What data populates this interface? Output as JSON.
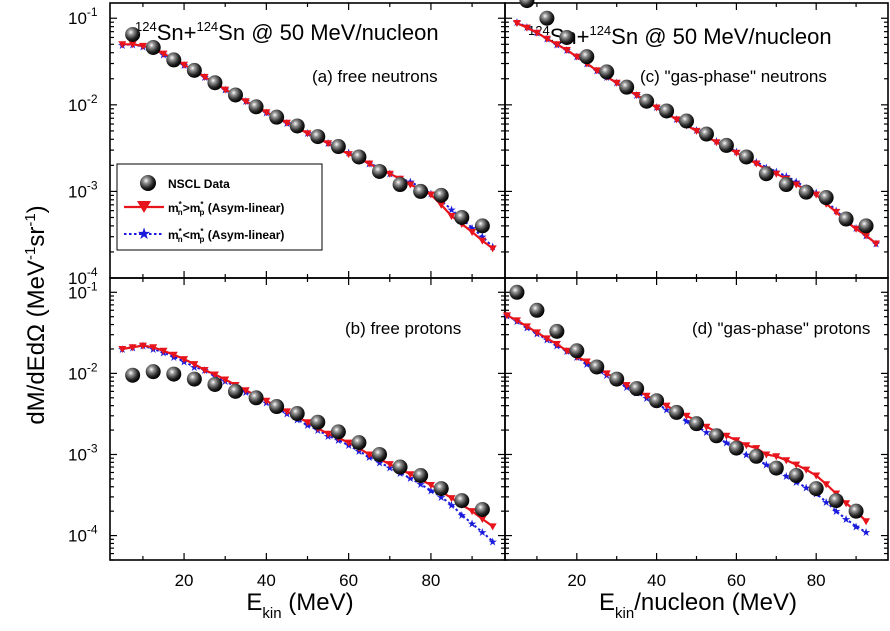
{
  "figure": {
    "ylabel": "dM/dEdΩ (MeV⁻¹sr⁻¹)",
    "left_xlabel": "E_kin (MeV)",
    "right_xlabel": "E_kin/nucleon (MeV)",
    "legend": {
      "data_label": "NSCL Data",
      "red_label": "m*n>m*p (Asym-linear)",
      "blue_label": "m*n<m*p (Asym-linear)"
    },
    "colors": {
      "red": "#e8141b",
      "blue": "#1a1adc",
      "data": "#111111"
    }
  },
  "chart_data": [
    {
      "id": "a",
      "type": "scatter",
      "title": "124Sn+124Sn @ 50 MeV/nucleon",
      "label": "(a) free neutrons",
      "xlabel": "E_kin (MeV)",
      "ylabel": "dM/dEdΩ (MeV⁻¹sr⁻¹)",
      "xlim": [
        2,
        98
      ],
      "ylim": [
        0.0001,
        0.15
      ],
      "yscale": "log",
      "xticks": [
        20,
        40,
        60,
        80
      ],
      "yticks": [
        {
          "value": 0.1,
          "label": "10^-1"
        },
        {
          "value": 0.01,
          "label": "10^-2"
        },
        {
          "value": 0.001,
          "label": "10^-3"
        },
        {
          "value": 0.0001,
          "label": "10^-4"
        }
      ],
      "series": [
        {
          "name": "NSCL Data",
          "style": "data",
          "x": [
            7.5,
            12.5,
            17.5,
            22.5,
            27.5,
            32.5,
            37.5,
            42.5,
            47.5,
            52.5,
            57.5,
            62.5,
            67.5,
            72.5,
            77.5,
            82.5,
            87.5,
            92.5
          ],
          "y": [
            0.065,
            0.046,
            0.033,
            0.025,
            0.018,
            0.013,
            0.0095,
            0.0072,
            0.0057,
            0.0043,
            0.0033,
            0.0025,
            0.0017,
            0.0012,
            0.001,
            0.0009,
            0.0005,
            0.0004
          ]
        },
        {
          "name": "m*n>m*p (Asym-linear)",
          "style": "red",
          "x": [
            5,
            7.5,
            10,
            12.5,
            15,
            17.5,
            20,
            22.5,
            25,
            27.5,
            30,
            32.5,
            35,
            37.5,
            40,
            42.5,
            45,
            47.5,
            50,
            52.5,
            55,
            57.5,
            60,
            62.5,
            65,
            67.5,
            70,
            72.5,
            75,
            77.5,
            80,
            82.5,
            85,
            87.5,
            90,
            92.5,
            95
          ],
          "y": [
            0.05,
            0.05,
            0.048,
            0.044,
            0.039,
            0.034,
            0.029,
            0.025,
            0.021,
            0.018,
            0.015,
            0.013,
            0.011,
            0.0095,
            0.0082,
            0.0071,
            0.0062,
            0.0054,
            0.0047,
            0.0041,
            0.0036,
            0.0031,
            0.0027,
            0.0024,
            0.0021,
            0.0018,
            0.0016,
            0.0014,
            0.0012,
            0.00105,
            0.00092,
            0.0007,
            0.00052,
            0.00042,
            0.00034,
            0.00027,
            0.00022
          ]
        },
        {
          "name": "m*n<m*p (Asym-linear)",
          "style": "blue",
          "x": [
            5,
            7.5,
            10,
            12.5,
            15,
            17.5,
            20,
            22.5,
            25,
            27.5,
            30,
            32.5,
            35,
            37.5,
            40,
            42.5,
            45,
            47.5,
            50,
            52.5,
            55,
            57.5,
            60,
            62.5,
            65,
            67.5,
            70,
            72.5,
            75,
            77.5,
            80,
            82.5,
            85,
            87.5,
            90,
            92.5,
            95
          ],
          "y": [
            0.049,
            0.05,
            0.047,
            0.043,
            0.038,
            0.033,
            0.029,
            0.025,
            0.021,
            0.018,
            0.015,
            0.013,
            0.011,
            0.0094,
            0.0082,
            0.0071,
            0.0062,
            0.0054,
            0.0047,
            0.0041,
            0.0036,
            0.0032,
            0.0028,
            0.0024,
            0.0021,
            0.0019,
            0.0016,
            0.0014,
            0.0013,
            0.0011,
            0.00095,
            0.00078,
            0.00062,
            0.00048,
            0.00038,
            0.0003,
            0.00023
          ]
        }
      ]
    },
    {
      "id": "c",
      "type": "scatter",
      "title": "124Sn+124Sn @ 50 MeV/nucleon",
      "label": "(c) \"gas-phase\" neutrons",
      "xlabel": "E_kin/nucleon (MeV)",
      "xlim": [
        2,
        98
      ],
      "ylim": [
        0.0001,
        0.15
      ],
      "yscale": "log",
      "xticks": [
        20,
        40,
        60,
        80
      ],
      "series": [
        {
          "name": "NSCL Data",
          "style": "data",
          "x": [
            7.5,
            12.5,
            17.5,
            22.5,
            27.5,
            32.5,
            37.5,
            42.5,
            47.5,
            52.5,
            57.5,
            62.5,
            67.5,
            72.5,
            77.5,
            82.5,
            87.5,
            92.5
          ],
          "y": [
            0.16,
            0.1,
            0.06,
            0.036,
            0.024,
            0.016,
            0.011,
            0.0085,
            0.0065,
            0.0046,
            0.0034,
            0.0025,
            0.0016,
            0.0012,
            0.00098,
            0.00085,
            0.00048,
            0.0004
          ]
        },
        {
          "name": "m*n>m*p (Asym-linear)",
          "style": "red",
          "x": [
            5,
            7.5,
            10,
            12.5,
            15,
            17.5,
            20,
            22.5,
            25,
            27.5,
            30,
            32.5,
            35,
            37.5,
            40,
            42.5,
            45,
            47.5,
            50,
            52.5,
            55,
            57.5,
            60,
            62.5,
            65,
            67.5,
            70,
            72.5,
            75,
            77.5,
            80,
            82.5,
            85,
            87.5,
            90,
            92.5,
            95
          ],
          "y": [
            0.088,
            0.078,
            0.068,
            0.058,
            0.05,
            0.043,
            0.036,
            0.03,
            0.025,
            0.021,
            0.018,
            0.015,
            0.013,
            0.011,
            0.0093,
            0.0079,
            0.0068,
            0.0058,
            0.005,
            0.0043,
            0.0037,
            0.0032,
            0.0028,
            0.0024,
            0.0021,
            0.0018,
            0.0016,
            0.0014,
            0.0012,
            0.00105,
            0.00092,
            0.00072,
            0.00058,
            0.00045,
            0.00037,
            0.00031,
            0.00025
          ]
        },
        {
          "name": "m*n<m*p (Asym-linear)",
          "style": "blue",
          "x": [
            5,
            7.5,
            10,
            12.5,
            15,
            17.5,
            20,
            22.5,
            25,
            27.5,
            30,
            32.5,
            35,
            37.5,
            40,
            42.5,
            45,
            47.5,
            50,
            52.5,
            55,
            57.5,
            60,
            62.5,
            65,
            67.5,
            70,
            72.5,
            75,
            77.5,
            80,
            82.5,
            85,
            87.5,
            90,
            92.5,
            95
          ],
          "y": [
            0.09,
            0.079,
            0.068,
            0.058,
            0.05,
            0.043,
            0.036,
            0.03,
            0.025,
            0.021,
            0.018,
            0.015,
            0.013,
            0.011,
            0.0094,
            0.008,
            0.0069,
            0.0059,
            0.0051,
            0.0044,
            0.0038,
            0.0033,
            0.0029,
            0.0025,
            0.0022,
            0.0019,
            0.0017,
            0.0015,
            0.0013,
            0.0011,
            0.00097,
            0.00078,
            0.0006,
            0.00047,
            0.00038,
            0.00031,
            0.00025
          ]
        }
      ]
    },
    {
      "id": "b",
      "type": "scatter",
      "label": "(b) free protons",
      "xlabel": "E_kin (MeV)",
      "ylabel": "dM/dEdΩ (MeV⁻¹sr⁻¹)",
      "xlim": [
        2,
        98
      ],
      "ylim": [
        5e-05,
        0.15
      ],
      "yscale": "log",
      "xticks": [
        20,
        40,
        60,
        80
      ],
      "yticks": [
        {
          "value": 0.1,
          "label": "10^-1"
        },
        {
          "value": 0.01,
          "label": "10^-2"
        },
        {
          "value": 0.001,
          "label": "10^-3"
        },
        {
          "value": 0.0001,
          "label": "10^-4"
        }
      ],
      "series": [
        {
          "name": "NSCL Data",
          "style": "data",
          "x": [
            7.5,
            12.5,
            17.5,
            22.5,
            27.5,
            32.5,
            37.5,
            42.5,
            47.5,
            52.5,
            57.5,
            62.5,
            67.5,
            72.5,
            77.5,
            82.5,
            87.5,
            92.5
          ],
          "y": [
            0.0095,
            0.0105,
            0.0098,
            0.0085,
            0.0073,
            0.006,
            0.005,
            0.0039,
            0.0032,
            0.0025,
            0.0019,
            0.0014,
            0.001,
            0.0007,
            0.00055,
            0.00038,
            0.00027,
            0.00021
          ]
        },
        {
          "name": "m*n>m*p (Asym-linear)",
          "style": "red",
          "x": [
            5,
            7.5,
            10,
            12.5,
            15,
            17.5,
            20,
            22.5,
            25,
            27.5,
            30,
            32.5,
            35,
            37.5,
            40,
            42.5,
            45,
            47.5,
            50,
            52.5,
            55,
            57.5,
            60,
            62.5,
            65,
            67.5,
            70,
            72.5,
            75,
            77.5,
            80,
            82.5,
            85,
            87.5,
            90,
            92.5,
            95
          ],
          "y": [
            0.02,
            0.021,
            0.022,
            0.021,
            0.019,
            0.017,
            0.015,
            0.013,
            0.011,
            0.0097,
            0.0084,
            0.0072,
            0.0062,
            0.0053,
            0.0046,
            0.0039,
            0.0034,
            0.0029,
            0.0025,
            0.0021,
            0.0018,
            0.0016,
            0.0014,
            0.0012,
            0.001,
            0.00088,
            0.00076,
            0.00066,
            0.00057,
            0.00049,
            0.00042,
            0.00035,
            0.00029,
            0.00024,
            0.0002,
            0.00016,
            0.00013
          ]
        },
        {
          "name": "m*n<m*p (Asym-linear)",
          "style": "blue",
          "x": [
            5,
            7.5,
            10,
            12.5,
            15,
            17.5,
            20,
            22.5,
            25,
            27.5,
            30,
            32.5,
            35,
            37.5,
            40,
            42.5,
            45,
            47.5,
            50,
            52.5,
            55,
            57.5,
            60,
            62.5,
            65,
            67.5,
            70,
            72.5,
            75,
            77.5,
            80,
            82.5,
            85,
            87.5,
            90,
            92.5,
            95
          ],
          "y": [
            0.02,
            0.021,
            0.022,
            0.02,
            0.018,
            0.016,
            0.014,
            0.012,
            0.011,
            0.0093,
            0.008,
            0.0069,
            0.0059,
            0.0051,
            0.0044,
            0.0037,
            0.0032,
            0.0027,
            0.0023,
            0.002,
            0.0017,
            0.0015,
            0.0013,
            0.0011,
            0.00093,
            0.0008,
            0.00069,
            0.00059,
            0.00051,
            0.00043,
            0.00036,
            0.0003,
            0.00024,
            0.00018,
            0.00014,
            0.00011,
            8.5e-05
          ]
        }
      ]
    },
    {
      "id": "d",
      "type": "scatter",
      "label": "(d) \"gas-phase\" protons",
      "xlabel": "E_kin/nucleon (MeV)",
      "xlim": [
        2,
        98
      ],
      "ylim": [
        5e-05,
        0.15
      ],
      "yscale": "log",
      "xticks": [
        20,
        40,
        60,
        80
      ],
      "series": [
        {
          "name": "NSCL Data",
          "style": "data",
          "x": [
            5,
            10,
            15,
            20,
            25,
            30,
            35,
            40,
            45,
            50,
            55,
            60,
            65,
            70,
            75,
            80,
            85,
            90
          ],
          "y": [
            0.1,
            0.06,
            0.033,
            0.019,
            0.012,
            0.0085,
            0.0065,
            0.0046,
            0.0033,
            0.0024,
            0.0017,
            0.0012,
            0.00095,
            0.00068,
            0.00055,
            0.00038,
            0.00027,
            0.0002
          ]
        },
        {
          "name": "m*n>m*p (Asym-linear)",
          "style": "red",
          "x": [
            2.5,
            5,
            7.5,
            10,
            12.5,
            15,
            17.5,
            20,
            22.5,
            25,
            27.5,
            30,
            32.5,
            35,
            37.5,
            40,
            42.5,
            45,
            47.5,
            50,
            52.5,
            55,
            57.5,
            60,
            62.5,
            65,
            67.5,
            70,
            72.5,
            75,
            77.5,
            80,
            82.5,
            85,
            87.5,
            90,
            92.5
          ],
          "y": [
            0.052,
            0.045,
            0.038,
            0.032,
            0.027,
            0.023,
            0.019,
            0.016,
            0.014,
            0.012,
            0.01,
            0.0085,
            0.0072,
            0.0062,
            0.0053,
            0.0046,
            0.004,
            0.0034,
            0.003,
            0.0026,
            0.0022,
            0.0019,
            0.0017,
            0.0015,
            0.0013,
            0.0012,
            0.001,
            0.00095,
            0.00085,
            0.00075,
            0.00065,
            0.00055,
            0.00043,
            0.00033,
            0.00025,
            0.0002,
            0.00015
          ]
        },
        {
          "name": "m*n<m*p (Asym-linear)",
          "style": "blue",
          "x": [
            2.5,
            5,
            7.5,
            10,
            12.5,
            15,
            17.5,
            20,
            22.5,
            25,
            27.5,
            30,
            32.5,
            35,
            37.5,
            40,
            42.5,
            45,
            47.5,
            50,
            52.5,
            55,
            57.5,
            60,
            62.5,
            65,
            67.5,
            70,
            72.5,
            75,
            77.5,
            80,
            82.5,
            85,
            87.5,
            90,
            92.5
          ],
          "y": [
            0.052,
            0.044,
            0.037,
            0.031,
            0.026,
            0.022,
            0.019,
            0.016,
            0.013,
            0.011,
            0.0095,
            0.008,
            0.0068,
            0.0058,
            0.005,
            0.0042,
            0.0036,
            0.0031,
            0.0026,
            0.0022,
            0.0019,
            0.0016,
            0.0014,
            0.0012,
            0.001,
            0.00087,
            0.00075,
            0.00064,
            0.00054,
            0.00046,
            0.00039,
            0.00033,
            0.00026,
            0.0002,
            0.00016,
            0.00013,
            0.00011
          ]
        }
      ]
    }
  ]
}
